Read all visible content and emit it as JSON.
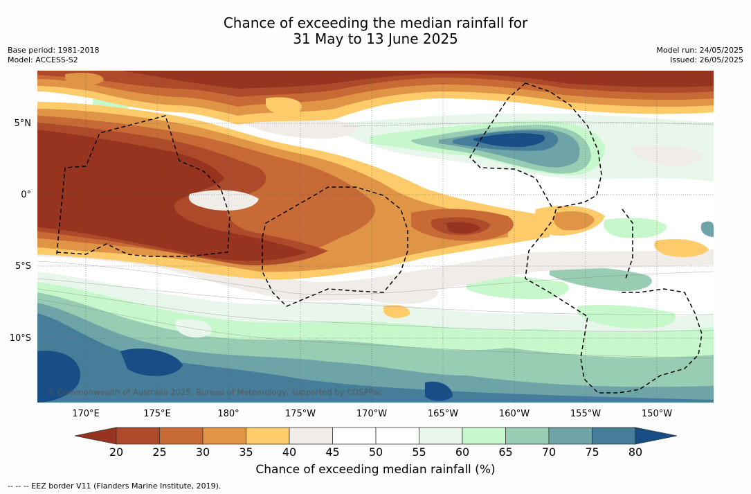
{
  "header": {
    "title_line1": "Chance of exceeding the median rainfall for",
    "title_line2": "31 May to 13 June 2025",
    "base_period": "Base period: 1981-2018",
    "model": "Model: ACCESS-S2",
    "model_run": "Model run: 24/05/2025",
    "issued": "Issued: 26/05/2025"
  },
  "map": {
    "lat_labels": [
      "5°N",
      "0°",
      "5°S",
      "10°S"
    ],
    "lon_labels": [
      "170°E",
      "175°E",
      "180°",
      "175°W",
      "170°W",
      "165°W",
      "160°W",
      "155°W",
      "150°W"
    ],
    "copyright": "© Commonwealth of Australia 2025, Bureau of Meteorology, supported by COSPPac",
    "border_style": "dashed"
  },
  "colorbar": {
    "ticks": [
      "20",
      "25",
      "30",
      "35",
      "40",
      "45",
      "50",
      "55",
      "60",
      "65",
      "70",
      "75",
      "80"
    ],
    "colors": [
      "#973420",
      "#ad4a2a",
      "#c86a35",
      "#e09446",
      "#fecb6b",
      "#f0ece8",
      "#ffffff",
      "#ffffff",
      "#e9f6ec",
      "#c6f8cb",
      "#98ccb3",
      "#6ea3a8",
      "#467d99",
      "#174e85"
    ],
    "label": "Chance of exceeding median rainfall (%)"
  },
  "footnote": "--  --  -- EEZ border V11 (Flanders Marine Institute, 2019)."
}
